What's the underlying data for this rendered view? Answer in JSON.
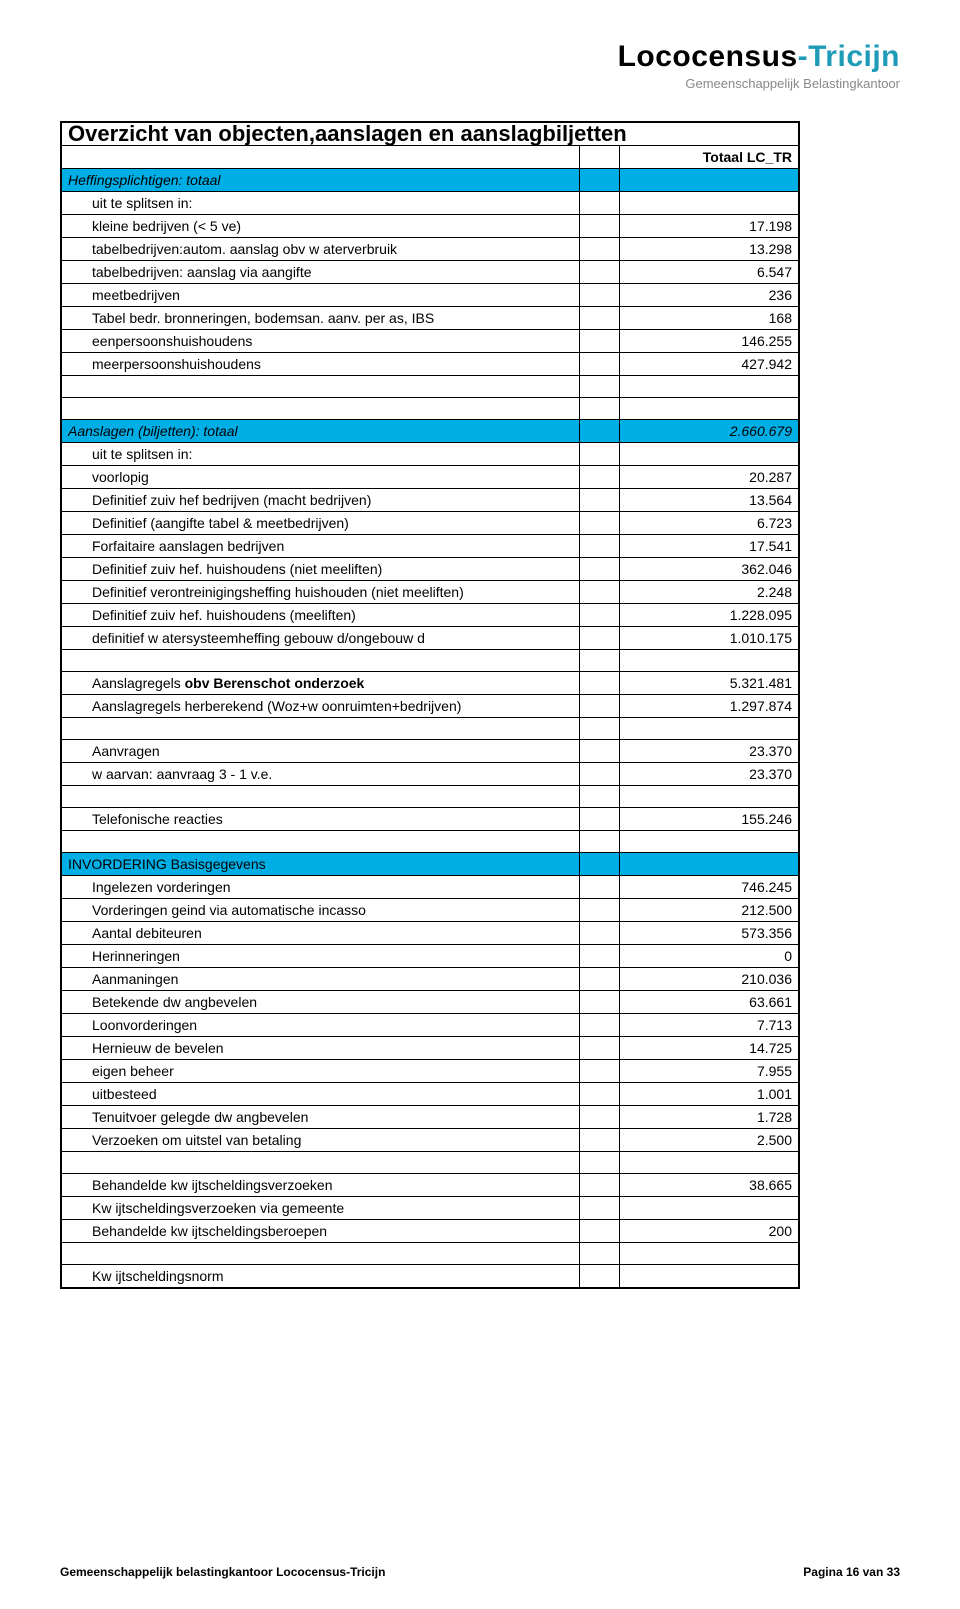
{
  "logo": {
    "main_a": "Lococensus",
    "dash": "-",
    "main_b": "Tricijn",
    "sub": "Gemeenschappelijk Belastingkantoor"
  },
  "title": "Overzicht van objecten,aanslagen en aanslagbiljetten",
  "col_header": "Totaal LC_TR",
  "sections": {
    "heffings": {
      "header": "Heffingsplichtigen: totaal",
      "rows": [
        {
          "label": "uit te splitsen in:",
          "value": ""
        },
        {
          "label": "kleine bedrijven (< 5 ve)",
          "value": "17.198"
        },
        {
          "label": "tabelbedrijven:autom. aanslag obv w aterverbruik",
          "value": "13.298"
        },
        {
          "label": "tabelbedrijven: aanslag via aangifte",
          "value": "6.547"
        },
        {
          "label": "meetbedrijven",
          "value": "236"
        },
        {
          "label": "Tabel bedr. bronneringen, bodemsan. aanv. per as, IBS",
          "value": "168"
        },
        {
          "label": "eenpersoonshuishoudens",
          "value": "146.255"
        },
        {
          "label": "meerpersoonshuishoudens",
          "value": "427.942"
        }
      ]
    },
    "aanslagen": {
      "header": "Aanslagen (biljetten): totaal",
      "header_value": "2.660.679",
      "rows": [
        {
          "label": "uit te splitsen in:",
          "value": ""
        },
        {
          "label": "voorlopig",
          "value": "20.287"
        },
        {
          "label": "Definitief zuiv hef bedrijven (macht bedrijven)",
          "value": "13.564"
        },
        {
          "label": "Definitief (aangifte tabel & meetbedrijven)",
          "value": "6.723"
        },
        {
          "label": "Forfaitaire aanslagen bedrijven",
          "value": "17.541"
        },
        {
          "label": "Definitief zuiv hef. huishoudens (niet meeliften)",
          "value": "362.046"
        },
        {
          "label": "Definitief verontreinigingsheffing huishouden (niet meeliften)",
          "value": "2.248"
        },
        {
          "label": "Definitief zuiv hef. huishoudens (meeliften)",
          "value": "1.228.095"
        },
        {
          "label": "definitief w atersysteemheffing gebouw d/ongebouw d",
          "value": "1.010.175"
        }
      ]
    },
    "aanslagregels": [
      {
        "label_a": "Aanslagregels ",
        "label_b": "obv Berenschot onderzoek",
        "value": "5.321.481"
      },
      {
        "label_a": "Aanslagregels herberekend (Woz+w oonruimten+bedrijven)",
        "label_b": "",
        "value": "1.297.874"
      }
    ],
    "aanvragen": [
      {
        "label": "Aanvragen",
        "value": "23.370"
      },
      {
        "label": "w aarvan: aanvraag 3 - 1 v.e.",
        "value": "23.370"
      }
    ],
    "telefonische": {
      "label": "Telefonische reacties",
      "value": "155.246"
    },
    "invordering": {
      "header": "INVORDERING Basisgegevens",
      "rows": [
        {
          "label": "Ingelezen vorderingen",
          "value": "746.245"
        },
        {
          "label": "Vorderingen geind via automatische incasso",
          "value": "212.500"
        },
        {
          "label": "Aantal debiteuren",
          "value": "573.356"
        },
        {
          "label": "Herinneringen",
          "value": "0"
        },
        {
          "label": "Aanmaningen",
          "value": "210.036"
        },
        {
          "label": "Betekende dw angbevelen",
          "value": "63.661"
        },
        {
          "label": "Loonvorderingen",
          "value": "7.713"
        },
        {
          "label": "Hernieuw de bevelen",
          "value": "14.725"
        },
        {
          "label": "eigen beheer",
          "value": "7.955"
        },
        {
          "label": "uitbesteed",
          "value": "1.001"
        },
        {
          "label": "Tenuitvoer gelegde dw angbevelen",
          "value": "1.728"
        },
        {
          "label": "Verzoeken om uitstel van betaling",
          "value": "2.500"
        }
      ]
    },
    "kwijt": [
      {
        "label": "Behandelde kw ijtscheldingsverzoeken",
        "value": "38.665"
      },
      {
        "label": "Kw ijtscheldingsverzoeken via gemeente",
        "value": ""
      },
      {
        "label": "Behandelde kw ijtscheldingsberoepen",
        "value": "200"
      }
    ],
    "kwijtnorm": {
      "label": "Kw ijtscheldingsnorm",
      "value": ""
    }
  },
  "footer": {
    "left": "Gemeenschappelijk belastingkantoor Lococensus-Tricijn",
    "right": "Pagina 16 van 33"
  },
  "colors": {
    "highlight": "#00aee6",
    "accent": "#1f9bb8",
    "text": "#000000",
    "subtext": "#888888",
    "border": "#000000",
    "bg": "#ffffff"
  }
}
